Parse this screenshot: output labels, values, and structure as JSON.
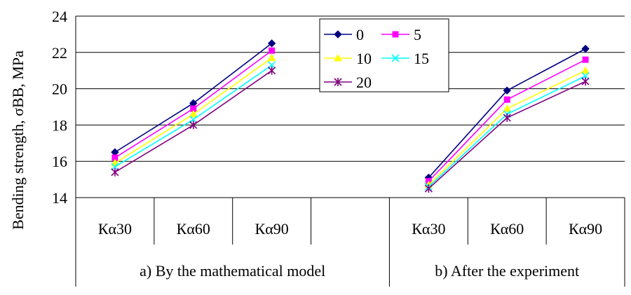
{
  "chart_data": {
    "type": "line",
    "ylabel": "Bending strength, σBB, MPa",
    "ylim": [
      14,
      24
    ],
    "yticks": [
      14,
      16,
      18,
      20,
      22,
      24
    ],
    "grid": true,
    "legend_position": "top-center",
    "groups": [
      {
        "label": "a) By the mathematical model",
        "categories": [
          "Кα30",
          "Кα60",
          "Кα90",
          ""
        ]
      },
      {
        "label": "b) After the experiment",
        "categories": [
          "Кα30",
          "Кα60",
          "Кα90"
        ]
      }
    ],
    "x": [
      "Кα30",
      "Кα60",
      "Кα90",
      "",
      "Кα30",
      "Кα60",
      "Кα90"
    ],
    "series": [
      {
        "name": "0",
        "color": "#000080",
        "marker": "diamond",
        "values": [
          16.5,
          19.2,
          22.5,
          null,
          15.1,
          19.9,
          22.2
        ]
      },
      {
        "name": "5",
        "color": "#FF00FF",
        "marker": "square",
        "values": [
          16.2,
          18.9,
          22.1,
          null,
          14.9,
          19.4,
          21.6
        ]
      },
      {
        "name": "10",
        "color": "#FFFF00",
        "marker": "triangle",
        "values": [
          15.9,
          18.6,
          21.7,
          null,
          14.7,
          18.9,
          21.0
        ]
      },
      {
        "name": "15",
        "color": "#00FFFF",
        "marker": "x",
        "values": [
          15.7,
          18.3,
          21.3,
          null,
          14.6,
          18.6,
          20.7
        ]
      },
      {
        "name": "20",
        "color": "#800080",
        "marker": "star",
        "values": [
          15.4,
          18.0,
          21.0,
          null,
          14.5,
          18.4,
          20.4
        ]
      }
    ]
  }
}
